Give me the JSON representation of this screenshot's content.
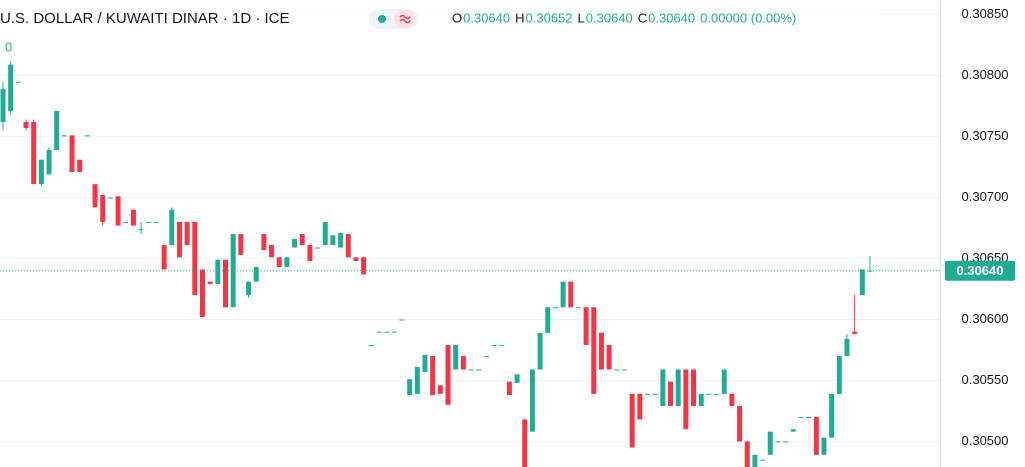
{
  "chart_data": {
    "type": "candlestick",
    "title": "U.S. DOLLAR / KUWAITI DINAR · 1D · ICE",
    "ohlc_header": [
      {
        "label": "O",
        "value": "0.30640"
      },
      {
        "label": "H",
        "value": "0.30652"
      },
      {
        "label": "L",
        "value": "0.30640"
      },
      {
        "label": "C",
        "value": "0.30640"
      }
    ],
    "change": "0.00000 (0.00%)",
    "edge_label": "0",
    "up_color": "#22ab94",
    "down_color": "#f23645",
    "grid": true,
    "ylim": [
      0.30479,
      0.30862
    ],
    "yticks": [
      {
        "value": 0.305,
        "label": "0.30500"
      },
      {
        "value": 0.3055,
        "label": "0.30550"
      },
      {
        "value": 0.306,
        "label": "0.30600"
      },
      {
        "value": 0.3065,
        "label": "0.30650"
      },
      {
        "value": 0.307,
        "label": "0.30700"
      },
      {
        "value": 0.3075,
        "label": "0.30750"
      },
      {
        "value": 0.308,
        "label": "0.30800"
      },
      {
        "value": 0.3085,
        "label": "0.30850"
      }
    ],
    "last_price": {
      "value": 0.3064,
      "label": "0.30640"
    },
    "ohlc": [
      [
        0.30762,
        0.30795,
        0.30755,
        0.30789
      ],
      [
        0.30771,
        0.30812,
        0.30768,
        0.30809
      ],
      [
        0.30795,
        0.30795,
        0.30795,
        0.30795
      ],
      [
        0.30762,
        0.30764,
        0.30755,
        0.30757
      ],
      [
        0.30762,
        0.30764,
        0.30711,
        0.30711
      ],
      [
        0.30711,
        0.30731,
        0.30709,
        0.30731
      ],
      [
        0.30719,
        0.30741,
        0.30719,
        0.30739
      ],
      [
        0.30739,
        0.30771,
        0.30739,
        0.30771
      ],
      [
        0.30751,
        0.30751,
        0.30751,
        0.30751
      ],
      [
        0.30751,
        0.30751,
        0.30721,
        0.30721
      ],
      [
        0.30731,
        0.30731,
        0.30721,
        0.30721
      ],
      [
        0.30751,
        0.30751,
        0.30751,
        0.30751
      ],
      [
        0.30711,
        0.30711,
        0.30692,
        0.30692
      ],
      [
        0.30702,
        0.30702,
        0.30677,
        0.3068
      ],
      [
        0.307,
        0.307,
        0.307,
        0.307
      ],
      [
        0.30701,
        0.30701,
        0.30677,
        0.30677
      ],
      [
        0.3068,
        0.3068,
        0.3068,
        0.3068
      ],
      [
        0.3069,
        0.3069,
        0.30677,
        0.30677
      ],
      [
        0.30674,
        0.3068,
        0.3067,
        0.30674
      ],
      [
        0.3068,
        0.3068,
        0.3068,
        0.3068
      ],
      [
        0.3068,
        0.3068,
        0.3068,
        0.3068
      ],
      [
        0.30661,
        0.30661,
        0.30641,
        0.30641
      ],
      [
        0.30661,
        0.30692,
        0.30661,
        0.3069
      ],
      [
        0.3068,
        0.3068,
        0.30651,
        0.30651
      ],
      [
        0.3068,
        0.3068,
        0.30661,
        0.30661
      ],
      [
        0.3068,
        0.3068,
        0.3062,
        0.3062
      ],
      [
        0.30641,
        0.30641,
        0.30602,
        0.30602
      ],
      [
        0.30631,
        0.30631,
        0.30629,
        0.30629
      ],
      [
        0.30629,
        0.30649,
        0.30629,
        0.30649
      ],
      [
        0.30649,
        0.30649,
        0.3061,
        0.3061
      ],
      [
        0.3061,
        0.3067,
        0.3061,
        0.3067
      ],
      [
        0.3067,
        0.3067,
        0.30653,
        0.30653
      ],
      [
        0.3062,
        0.30631,
        0.30618,
        0.30631
      ],
      [
        0.30631,
        0.30643,
        0.30631,
        0.30643
      ],
      [
        0.3067,
        0.3067,
        0.30657,
        0.30657
      ],
      [
        0.30661,
        0.30661,
        0.30651,
        0.30651
      ],
      [
        0.30651,
        0.30651,
        0.30643,
        0.30643
      ],
      [
        0.30643,
        0.30651,
        0.30643,
        0.30651
      ],
      [
        0.30659,
        0.30666,
        0.30659,
        0.30666
      ],
      [
        0.3067,
        0.3067,
        0.30661,
        0.30661
      ],
      [
        0.30661,
        0.30661,
        0.30648,
        0.30648
      ],
      [
        0.30659,
        0.30659,
        0.30659,
        0.30659
      ],
      [
        0.30661,
        0.3068,
        0.30661,
        0.3068
      ],
      [
        0.30661,
        0.30669,
        0.30661,
        0.30669
      ],
      [
        0.30659,
        0.30671,
        0.30659,
        0.30671
      ],
      [
        0.3067,
        0.3067,
        0.30651,
        0.30651
      ],
      [
        0.30651,
        0.30651,
        0.30648,
        0.30648
      ],
      [
        0.30651,
        0.30651,
        0.30637,
        0.30637
      ],
      [
        0.30579,
        0.30579,
        0.30579,
        0.30579
      ],
      [
        0.3059,
        0.3059,
        0.3059,
        0.3059
      ],
      [
        0.3059,
        0.3059,
        0.3059,
        0.3059
      ],
      [
        0.3059,
        0.3059,
        0.3059,
        0.3059
      ],
      [
        0.306,
        0.306,
        0.306,
        0.306
      ],
      [
        0.30538,
        0.30551,
        0.30538,
        0.30551
      ],
      [
        0.30539,
        0.30561,
        0.30539,
        0.30561
      ],
      [
        0.30557,
        0.30571,
        0.30557,
        0.30571
      ],
      [
        0.3057,
        0.3057,
        0.30538,
        0.30538
      ],
      [
        0.30546,
        0.30546,
        0.30539,
        0.30539
      ],
      [
        0.30579,
        0.30579,
        0.3053,
        0.3053
      ],
      [
        0.30559,
        0.30579,
        0.30559,
        0.30579
      ],
      [
        0.3057,
        0.3057,
        0.30559,
        0.30559
      ],
      [
        0.30559,
        0.30559,
        0.30559,
        0.30559
      ],
      [
        0.30559,
        0.30559,
        0.30559,
        0.30559
      ],
      [
        0.3057,
        0.3057,
        0.3057,
        0.3057
      ],
      [
        0.30579,
        0.30579,
        0.30579,
        0.30579
      ],
      [
        0.30579,
        0.30579,
        0.30579,
        0.30579
      ],
      [
        0.30549,
        0.30549,
        0.30538,
        0.30538
      ],
      [
        0.30548,
        0.30555,
        0.30548,
        0.30555
      ],
      [
        0.30518,
        0.30518,
        0.30479,
        0.30479
      ],
      [
        0.30508,
        0.30559,
        0.30508,
        0.30559
      ],
      [
        0.30559,
        0.30589,
        0.30559,
        0.30589
      ],
      [
        0.30589,
        0.3061,
        0.30589,
        0.3061
      ],
      [
        0.3061,
        0.3061,
        0.3061,
        0.3061
      ],
      [
        0.3061,
        0.30631,
        0.3061,
        0.30631
      ],
      [
        0.30631,
        0.30631,
        0.3061,
        0.3061
      ],
      [
        0.3061,
        0.3061,
        0.3061,
        0.3061
      ],
      [
        0.3061,
        0.3061,
        0.30579,
        0.30579
      ],
      [
        0.3061,
        0.3061,
        0.30539,
        0.30539
      ],
      [
        0.30589,
        0.30589,
        0.30559,
        0.30559
      ],
      [
        0.30579,
        0.30579,
        0.30559,
        0.30559
      ],
      [
        0.30559,
        0.30559,
        0.30559,
        0.30559
      ],
      [
        0.30559,
        0.30559,
        0.30559,
        0.30559
      ],
      [
        0.30539,
        0.30539,
        0.30495,
        0.30495
      ],
      [
        0.30539,
        0.30539,
        0.30518,
        0.30518
      ],
      [
        0.30539,
        0.30539,
        0.30539,
        0.30539
      ],
      [
        0.30539,
        0.30539,
        0.30539,
        0.30539
      ],
      [
        0.30529,
        0.30559,
        0.30529,
        0.30559
      ],
      [
        0.30549,
        0.30549,
        0.30529,
        0.30529
      ],
      [
        0.30529,
        0.30559,
        0.30529,
        0.30559
      ],
      [
        0.30559,
        0.30559,
        0.3051,
        0.3051
      ],
      [
        0.30559,
        0.30559,
        0.30529,
        0.30529
      ],
      [
        0.30529,
        0.30539,
        0.30529,
        0.30539
      ],
      [
        0.30539,
        0.30539,
        0.30539,
        0.30539
      ],
      [
        0.30539,
        0.30539,
        0.30539,
        0.30539
      ],
      [
        0.30539,
        0.30559,
        0.30539,
        0.30559
      ],
      [
        0.30539,
        0.30539,
        0.30529,
        0.30529
      ],
      [
        0.30529,
        0.30529,
        0.305,
        0.305
      ],
      [
        0.305,
        0.305,
        0.30479,
        0.30479
      ],
      [
        0.30479,
        0.30489,
        0.30479,
        0.30489
      ],
      [
        0.30485,
        0.30485,
        0.30485,
        0.30485
      ],
      [
        0.30489,
        0.30508,
        0.30489,
        0.30508
      ],
      [
        0.305,
        0.305,
        0.305,
        0.305
      ],
      [
        0.305,
        0.305,
        0.305,
        0.305
      ],
      [
        0.30508,
        0.3051,
        0.30508,
        0.3051
      ],
      [
        0.3052,
        0.3052,
        0.3052,
        0.3052
      ],
      [
        0.3052,
        0.3052,
        0.3052,
        0.3052
      ],
      [
        0.3052,
        0.3052,
        0.30489,
        0.30489
      ],
      [
        0.30489,
        0.30503,
        0.30489,
        0.30503
      ],
      [
        0.30503,
        0.30539,
        0.30503,
        0.30539
      ],
      [
        0.30539,
        0.3057,
        0.30539,
        0.3057
      ],
      [
        0.3057,
        0.30588,
        0.3057,
        0.30584
      ],
      [
        0.3059,
        0.3062,
        0.30588,
        0.30588
      ],
      [
        0.3062,
        0.30641,
        0.3062,
        0.30641
      ],
      [
        0.3064,
        0.30652,
        0.3064,
        0.3064
      ]
    ]
  }
}
